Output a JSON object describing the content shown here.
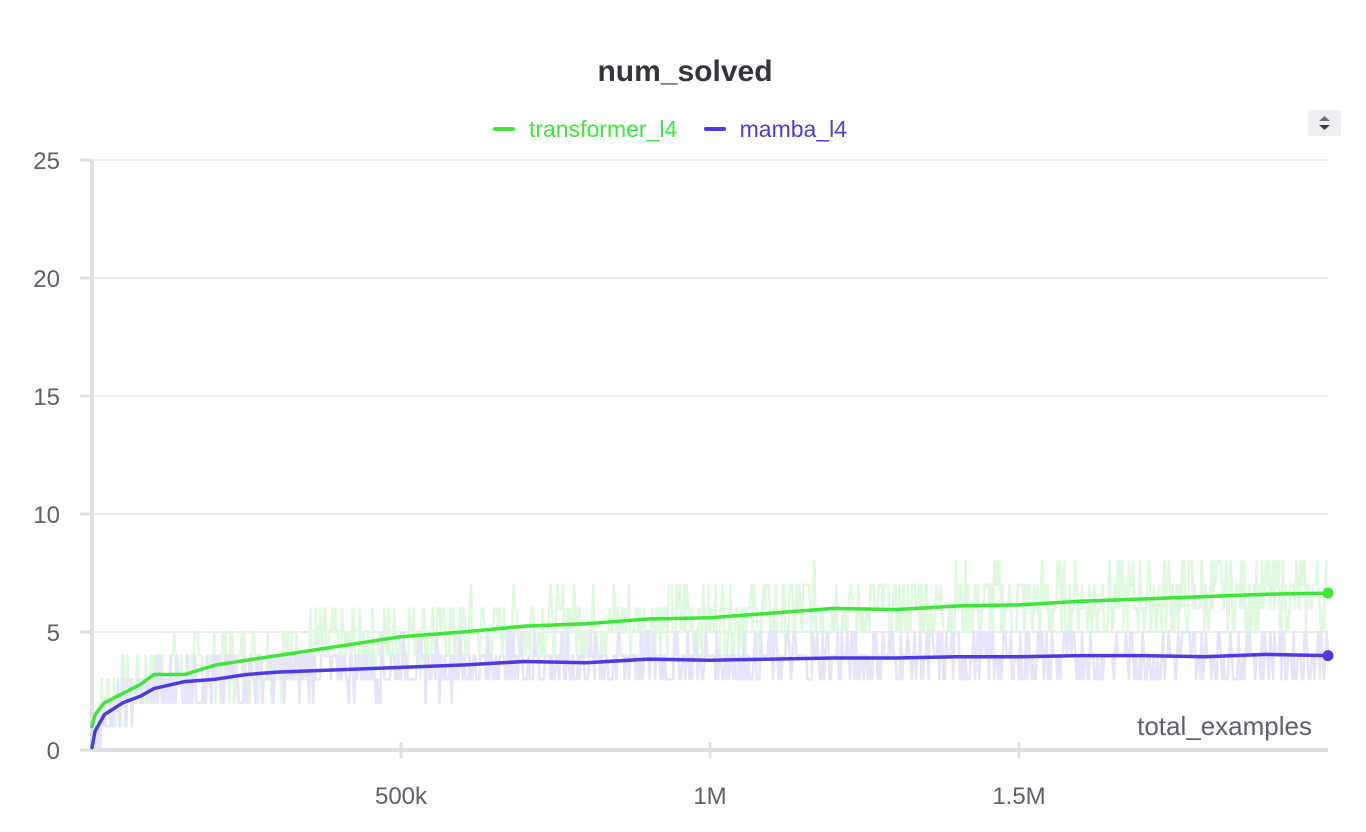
{
  "chart_data": {
    "type": "line",
    "title": "num_solved",
    "xlabel": "total_examples",
    "ylabel": "",
    "xlim": [
      0,
      2000000
    ],
    "ylim": [
      0,
      25
    ],
    "y_ticks": [
      0,
      5,
      10,
      15,
      20,
      25
    ],
    "x_ticks": [
      500000,
      1000000,
      1500000
    ],
    "x_tick_labels": [
      "500k",
      "1M",
      "1.5M"
    ],
    "y_tick_labels": [
      "0",
      "5",
      "10",
      "15",
      "20",
      "25"
    ],
    "grid": true,
    "legend_position": "top-center",
    "series": [
      {
        "name": "transformer_l4",
        "color": "#3de639",
        "x": [
          0,
          5000,
          20000,
          50000,
          80000,
          100000,
          150000,
          200000,
          250000,
          300000,
          400000,
          500000,
          600000,
          700000,
          800000,
          900000,
          1000000,
          1100000,
          1200000,
          1300000,
          1400000,
          1500000,
          1600000,
          1700000,
          1800000,
          1900000,
          2000000
        ],
        "values": [
          1.0,
          1.5,
          2.0,
          2.4,
          2.8,
          3.2,
          3.2,
          3.6,
          3.8,
          4.0,
          4.4,
          4.8,
          5.0,
          5.25,
          5.35,
          5.55,
          5.6,
          5.8,
          6.0,
          5.95,
          6.1,
          6.15,
          6.3,
          6.4,
          6.5,
          6.6,
          6.65
        ]
      },
      {
        "name": "mamba_l4",
        "color": "#4c3ae3",
        "x": [
          0,
          5000,
          20000,
          50000,
          80000,
          100000,
          150000,
          200000,
          250000,
          300000,
          400000,
          500000,
          600000,
          700000,
          800000,
          900000,
          1000000,
          1100000,
          1200000,
          1300000,
          1400000,
          1500000,
          1600000,
          1700000,
          1800000,
          1900000,
          2000000
        ],
        "values": [
          0.1,
          0.8,
          1.5,
          2.0,
          2.3,
          2.6,
          2.9,
          3.0,
          3.2,
          3.3,
          3.4,
          3.5,
          3.6,
          3.75,
          3.7,
          3.85,
          3.8,
          3.85,
          3.9,
          3.9,
          3.95,
          3.95,
          4.0,
          4.0,
          3.95,
          4.05,
          4.0
        ]
      }
    ]
  },
  "ui": {
    "sort_icon": "sort-arrows-icon"
  }
}
